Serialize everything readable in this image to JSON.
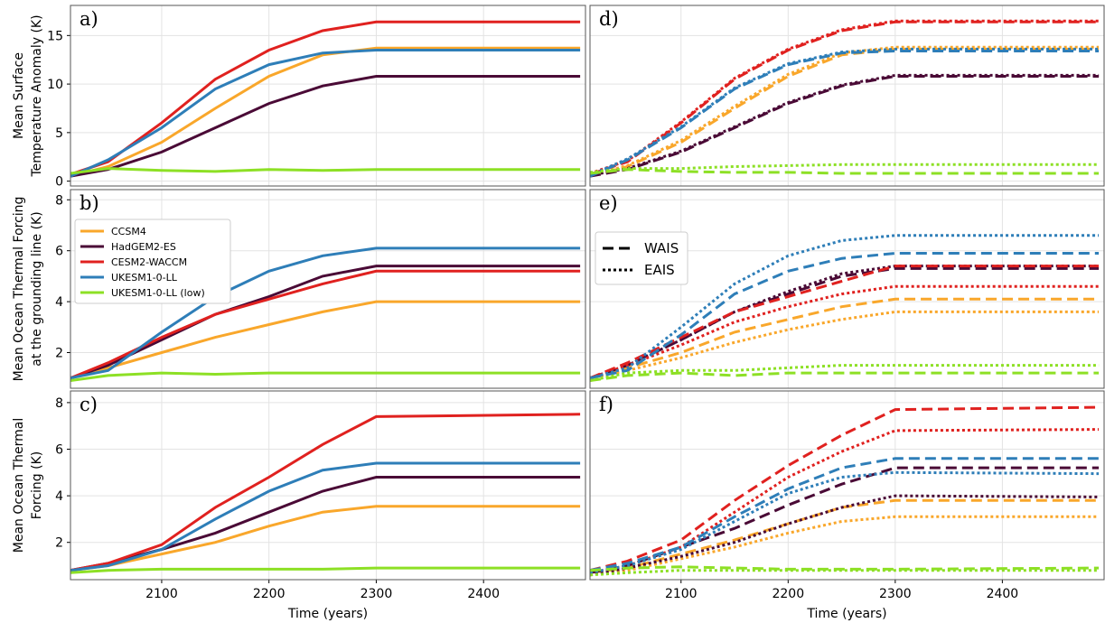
{
  "chart_data": [
    {
      "type": "line",
      "label": "a)",
      "ylabel": [
        "Mean Surface",
        "Temperature Anomaly (K)"
      ],
      "x": [
        2015,
        2050,
        2100,
        2150,
        2200,
        2250,
        2300,
        2490
      ],
      "xlim": [
        2015,
        2495
      ],
      "xticks": [
        2100,
        2200,
        2300,
        2400
      ],
      "ylim": [
        -0.5,
        18.1
      ],
      "yticks": [
        0,
        5,
        10,
        15
      ],
      "grid": true,
      "series": [
        {
          "color": "#f9a72b",
          "dash": "solid",
          "values": [
            0.5,
            1.5,
            4,
            7.5,
            10.8,
            13,
            13.7,
            13.7
          ]
        },
        {
          "color": "#4a0a36",
          "dash": "solid",
          "values": [
            0.5,
            1.2,
            3,
            5.5,
            8,
            9.8,
            10.8,
            10.8
          ]
        },
        {
          "color": "#e0211f",
          "dash": "solid",
          "values": [
            0.7,
            2,
            6,
            10.5,
            13.5,
            15.5,
            16.4,
            16.4
          ]
        },
        {
          "color": "#2e7eb8",
          "dash": "solid",
          "values": [
            0.5,
            2.2,
            5.5,
            9.5,
            12,
            13.2,
            13.5,
            13.5
          ]
        },
        {
          "color": "#8de025",
          "dash": "solid",
          "values": [
            0.8,
            1.3,
            1.1,
            1.0,
            1.2,
            1.1,
            1.2,
            1.2
          ]
        }
      ]
    },
    {
      "type": "line",
      "label": "b)",
      "ylabel": [
        "Mean Ocean Thermal Forcing",
        "at the grounding line (K)"
      ],
      "x": [
        2015,
        2050,
        2100,
        2150,
        2200,
        2250,
        2300,
        2490
      ],
      "xlim": [
        2015,
        2495
      ],
      "xticks": [
        2100,
        2200,
        2300,
        2400
      ],
      "ylim": [
        0.6,
        8.4
      ],
      "yticks": [
        2,
        4,
        6,
        8
      ],
      "grid": true,
      "legend": "upper left",
      "series": [
        {
          "name": "CCSM4",
          "color": "#f9a72b",
          "dash": "solid",
          "values": [
            1,
            1.4,
            2,
            2.6,
            3.1,
            3.6,
            4.0,
            4.0
          ]
        },
        {
          "name": "HadGEM2-ES",
          "color": "#4a0a36",
          "dash": "solid",
          "values": [
            1,
            1.5,
            2.5,
            3.5,
            4.2,
            5.0,
            5.4,
            5.4
          ]
        },
        {
          "name": "CESM2-WACCM",
          "color": "#e0211f",
          "dash": "solid",
          "values": [
            1,
            1.6,
            2.6,
            3.5,
            4.1,
            4.7,
            5.2,
            5.2
          ]
        },
        {
          "name": "UKESM1-0-LL",
          "color": "#2e7eb8",
          "dash": "solid",
          "values": [
            1,
            1.3,
            2.8,
            4.2,
            5.2,
            5.8,
            6.1,
            6.1
          ]
        },
        {
          "name": "UKESM1-0-LL (low)",
          "color": "#8de025",
          "dash": "solid",
          "values": [
            0.9,
            1.1,
            1.2,
            1.15,
            1.2,
            1.2,
            1.2,
            1.2
          ]
        }
      ]
    },
    {
      "type": "line",
      "label": "c)",
      "ylabel": [
        "Mean Ocean Thermal",
        "Forcing (K)"
      ],
      "xlabel": "Time (years)",
      "x": [
        2015,
        2050,
        2100,
        2150,
        2200,
        2250,
        2300,
        2490
      ],
      "xlim": [
        2015,
        2495
      ],
      "xticks": [
        2100,
        2200,
        2300,
        2400
      ],
      "ylim": [
        0.4,
        8.5
      ],
      "yticks": [
        2,
        4,
        6,
        8
      ],
      "grid": true,
      "series": [
        {
          "color": "#f9a72b",
          "dash": "solid",
          "values": [
            0.8,
            1.0,
            1.5,
            2.0,
            2.7,
            3.3,
            3.55,
            3.55
          ]
        },
        {
          "color": "#4a0a36",
          "dash": "solid",
          "values": [
            0.8,
            1.1,
            1.7,
            2.4,
            3.3,
            4.2,
            4.8,
            4.8
          ]
        },
        {
          "color": "#e0211f",
          "dash": "solid",
          "values": [
            0.8,
            1.1,
            1.9,
            3.5,
            4.8,
            6.2,
            7.4,
            7.5
          ]
        },
        {
          "color": "#2e7eb8",
          "dash": "solid",
          "values": [
            0.8,
            1.0,
            1.7,
            3.0,
            4.2,
            5.1,
            5.4,
            5.4
          ]
        },
        {
          "color": "#8de025",
          "dash": "solid",
          "values": [
            0.7,
            0.8,
            0.85,
            0.85,
            0.85,
            0.85,
            0.9,
            0.9
          ]
        }
      ]
    },
    {
      "type": "line",
      "label": "d)",
      "x": [
        2015,
        2050,
        2100,
        2150,
        2200,
        2250,
        2300,
        2490
      ],
      "xlim": [
        2015,
        2495
      ],
      "xticks": [
        2100,
        2200,
        2300,
        2400
      ],
      "ylim": [
        -0.5,
        18.1
      ],
      "yticks": [
        0,
        5,
        10,
        15
      ],
      "grid": true,
      "series": [
        {
          "color": "#f9a72b",
          "dash": "dashed",
          "values": [
            0.5,
            1.5,
            4,
            7.5,
            10.8,
            13,
            13.6,
            13.6
          ]
        },
        {
          "color": "#f9a72b",
          "dash": "dotted",
          "values": [
            0.6,
            1.6,
            4.2,
            7.7,
            11,
            13.2,
            13.8,
            13.8
          ]
        },
        {
          "color": "#4a0a36",
          "dash": "dashed",
          "values": [
            0.5,
            1.2,
            3,
            5.5,
            8,
            9.8,
            10.8,
            10.8
          ]
        },
        {
          "color": "#4a0a36",
          "dash": "dotted",
          "values": [
            0.6,
            1.3,
            3.1,
            5.6,
            8.1,
            9.9,
            10.9,
            10.9
          ]
        },
        {
          "color": "#e0211f",
          "dash": "dashed",
          "values": [
            0.7,
            2,
            6,
            10.5,
            13.5,
            15.5,
            16.4,
            16.4
          ]
        },
        {
          "color": "#e0211f",
          "dash": "dotted",
          "values": [
            0.8,
            2.1,
            6.1,
            10.6,
            13.6,
            15.6,
            16.5,
            16.5
          ]
        },
        {
          "color": "#2e7eb8",
          "dash": "dashed",
          "values": [
            0.5,
            2.2,
            5.5,
            9.5,
            12,
            13.2,
            13.4,
            13.4
          ]
        },
        {
          "color": "#2e7eb8",
          "dash": "dotted",
          "values": [
            0.6,
            2.3,
            5.6,
            9.6,
            12.1,
            13.3,
            13.6,
            13.6
          ]
        },
        {
          "color": "#8de025",
          "dash": "dashed",
          "values": [
            0.8,
            1.2,
            1.0,
            0.9,
            0.9,
            0.8,
            0.8,
            0.8
          ]
        },
        {
          "color": "#8de025",
          "dash": "dotted",
          "values": [
            0.9,
            1.3,
            1.3,
            1.5,
            1.6,
            1.7,
            1.7,
            1.7
          ]
        }
      ]
    },
    {
      "type": "line",
      "label": "e)",
      "x": [
        2015,
        2050,
        2100,
        2150,
        2200,
        2250,
        2300,
        2490
      ],
      "xlim": [
        2015,
        2495
      ],
      "xticks": [
        2100,
        2200,
        2300,
        2400
      ],
      "ylim": [
        0.6,
        8.4
      ],
      "yticks": [
        2,
        4,
        6,
        8
      ],
      "grid": true,
      "style_legend": [
        {
          "name": "WAIS",
          "dash": "dashed"
        },
        {
          "name": "EAIS",
          "dash": "dotted"
        }
      ],
      "series": [
        {
          "color": "#f9a72b",
          "dash": "dashed",
          "values": [
            1,
            1.4,
            2,
            2.8,
            3.3,
            3.8,
            4.1,
            4.1
          ]
        },
        {
          "color": "#f9a72b",
          "dash": "dotted",
          "values": [
            1,
            1.3,
            1.8,
            2.4,
            2.9,
            3.3,
            3.6,
            3.6
          ]
        },
        {
          "color": "#4a0a36",
          "dash": "dashed",
          "values": [
            1,
            1.5,
            2.5,
            3.6,
            4.3,
            5.0,
            5.3,
            5.3
          ]
        },
        {
          "color": "#4a0a36",
          "dash": "dotted",
          "values": [
            1,
            1.5,
            2.5,
            3.6,
            4.4,
            5.1,
            5.4,
            5.4
          ]
        },
        {
          "color": "#e0211f",
          "dash": "dashed",
          "values": [
            1,
            1.6,
            2.6,
            3.6,
            4.2,
            4.8,
            5.4,
            5.4
          ]
        },
        {
          "color": "#e0211f",
          "dash": "dotted",
          "values": [
            1,
            1.5,
            2.3,
            3.2,
            3.8,
            4.3,
            4.6,
            4.6
          ]
        },
        {
          "color": "#2e7eb8",
          "dash": "dashed",
          "values": [
            1,
            1.3,
            2.7,
            4.3,
            5.2,
            5.7,
            5.9,
            5.9
          ]
        },
        {
          "color": "#2e7eb8",
          "dash": "dotted",
          "values": [
            1,
            1.4,
            3.0,
            4.7,
            5.8,
            6.4,
            6.6,
            6.6
          ]
        },
        {
          "color": "#8de025",
          "dash": "dashed",
          "values": [
            0.9,
            1.1,
            1.2,
            1.1,
            1.2,
            1.2,
            1.2,
            1.2
          ]
        },
        {
          "color": "#8de025",
          "dash": "dotted",
          "values": [
            0.9,
            1.2,
            1.3,
            1.3,
            1.4,
            1.5,
            1.5,
            1.5
          ]
        }
      ]
    },
    {
      "type": "line",
      "label": "f)",
      "xlabel": "Time (years)",
      "x": [
        2015,
        2050,
        2100,
        2150,
        2200,
        2250,
        2300,
        2490
      ],
      "xlim": [
        2015,
        2495
      ],
      "xticks": [
        2100,
        2200,
        2300,
        2400
      ],
      "ylim": [
        0.4,
        8.5
      ],
      "yticks": [
        2,
        4,
        6,
        8
      ],
      "grid": true,
      "series": [
        {
          "color": "#f9a72b",
          "dash": "dashed",
          "values": [
            0.7,
            0.9,
            1.5,
            2.1,
            2.8,
            3.5,
            3.8,
            3.8
          ]
        },
        {
          "color": "#f9a72b",
          "dash": "dotted",
          "values": [
            0.6,
            0.8,
            1.3,
            1.8,
            2.4,
            2.9,
            3.1,
            3.1
          ]
        },
        {
          "color": "#4a0a36",
          "dash": "dashed",
          "values": [
            0.7,
            1.0,
            1.8,
            2.6,
            3.6,
            4.5,
            5.2,
            5.2
          ]
        },
        {
          "color": "#4a0a36",
          "dash": "dotted",
          "values": [
            0.6,
            0.9,
            1.4,
            2.0,
            2.8,
            3.5,
            4.0,
            3.95
          ]
        },
        {
          "color": "#e0211f",
          "dash": "dashed",
          "values": [
            0.8,
            1.2,
            2.1,
            3.8,
            5.3,
            6.6,
            7.7,
            7.8
          ]
        },
        {
          "color": "#e0211f",
          "dash": "dotted",
          "values": [
            0.7,
            1.0,
            1.8,
            3.3,
            4.8,
            5.9,
            6.8,
            6.85
          ]
        },
        {
          "color": "#2e7eb8",
          "dash": "dashed",
          "values": [
            0.8,
            1.1,
            1.8,
            3.1,
            4.3,
            5.2,
            5.6,
            5.6
          ]
        },
        {
          "color": "#2e7eb8",
          "dash": "dotted",
          "values": [
            0.7,
            1.0,
            1.7,
            2.9,
            4.1,
            4.8,
            5.0,
            4.95
          ]
        },
        {
          "color": "#8de025",
          "dash": "dashed",
          "values": [
            0.8,
            0.9,
            0.95,
            0.9,
            0.85,
            0.85,
            0.85,
            0.9
          ]
        },
        {
          "color": "#8de025",
          "dash": "dotted",
          "values": [
            0.6,
            0.7,
            0.8,
            0.8,
            0.8,
            0.8,
            0.8,
            0.8
          ]
        }
      ]
    }
  ]
}
